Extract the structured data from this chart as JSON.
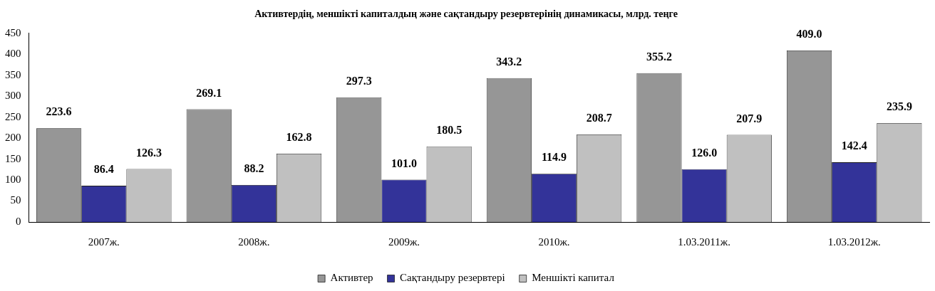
{
  "chart_data": {
    "type": "bar",
    "title": "Активтердің, меншікті капиталдың және сақтандыру резервтерінің динамикасы, млрд. теңге",
    "categories": [
      "2007ж.",
      "2008ж.",
      "2009ж.",
      "2010ж.",
      "1.03.2011ж.",
      "1.03.2012ж."
    ],
    "series": [
      {
        "name": "Активтер",
        "color": "#969696",
        "values": [
          223.6,
          269.1,
          297.3,
          343.2,
          355.2,
          409.0
        ],
        "value_labels": [
          "223.6",
          "269.1",
          "297.3",
          "343.2",
          "355.2",
          "409.0"
        ]
      },
      {
        "name": "Сақтандыру резервтері",
        "color": "#333399",
        "values": [
          86.4,
          88.2,
          101.0,
          114.9,
          126.0,
          142.4
        ],
        "value_labels": [
          "86.4",
          "88.2",
          "101.0",
          "114.9",
          "126.0",
          "142.4"
        ]
      },
      {
        "name": "Меншікті капитал",
        "color": "#c0c0c0",
        "values": [
          126.3,
          162.8,
          180.5,
          208.7,
          207.9,
          235.9
        ],
        "value_labels": [
          "126.3",
          "162.8",
          "180.5",
          "208.7",
          "207.9",
          "235.9"
        ]
      }
    ],
    "ylim": [
      0,
      450
    ],
    "yticks": [
      0,
      50,
      100,
      150,
      200,
      250,
      300,
      350,
      400,
      450
    ],
    "grid": false,
    "legend": "bottom"
  }
}
